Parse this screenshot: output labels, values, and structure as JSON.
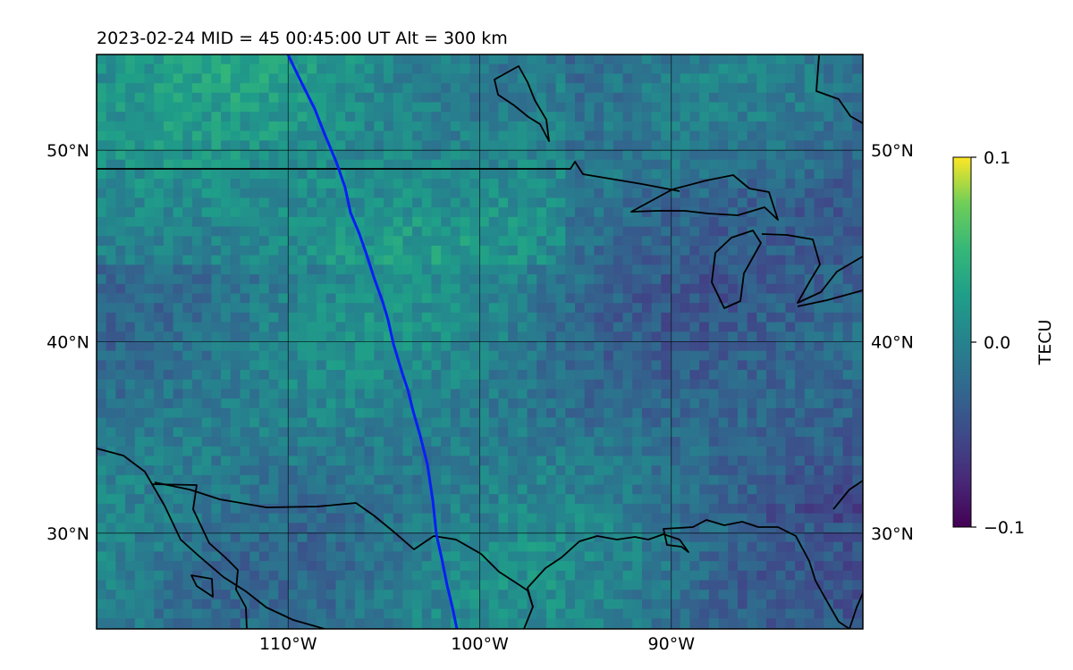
{
  "title": "2023-02-24  MID =  45    00:45:00  UT  Alt = 300 km",
  "map": {
    "extent_lon": [
      -120,
      -80
    ],
    "extent_lat": [
      25,
      55
    ],
    "lat_ticks": [
      {
        "value": 50,
        "label": "50°N"
      },
      {
        "value": 40,
        "label": "40°N"
      },
      {
        "value": 30,
        "label": "30°N"
      }
    ],
    "lon_ticks": [
      {
        "value": -110,
        "label": "110°W"
      },
      {
        "value": -100,
        "label": "100°W"
      },
      {
        "value": -90,
        "label": "90°W"
      }
    ],
    "grid": true,
    "track_color": "#0a1ff5",
    "coast_color": "#000000"
  },
  "colorbar": {
    "label": "TECU",
    "min": -0.1,
    "max": 0.1,
    "ticks": [
      {
        "value": 0.1,
        "label": "0.1"
      },
      {
        "value": 0.0,
        "label": "0.0"
      },
      {
        "value": -0.1,
        "label": "−0.1"
      }
    ],
    "colormap": "viridis"
  }
}
